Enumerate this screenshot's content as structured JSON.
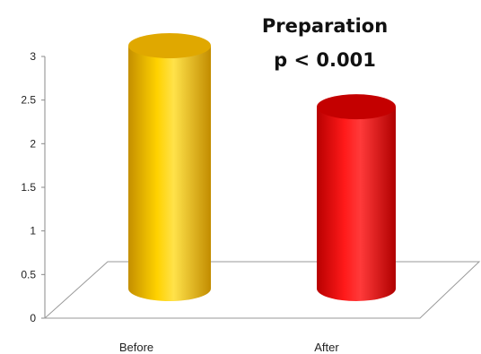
{
  "chart_data": {
    "type": "bar",
    "style": "3d-cylinder",
    "title_lines": [
      "Preparation",
      "p < 0.001"
    ],
    "xlabel": "",
    "ylabel": "",
    "categories": [
      "Before",
      "After"
    ],
    "values": [
      3.0,
      2.3
    ],
    "ylim": [
      0,
      3
    ],
    "yticks": [
      "0",
      "0.5",
      "1",
      "1.5",
      "2",
      "2.5",
      "3"
    ],
    "ytick_values": [
      0,
      0.5,
      1,
      1.5,
      2,
      2.5,
      3
    ],
    "grid": false,
    "legend": "none",
    "colors": {
      "before_bar": "#f2bf00",
      "after_bar": "#e00000",
      "axis": "#888888"
    }
  }
}
